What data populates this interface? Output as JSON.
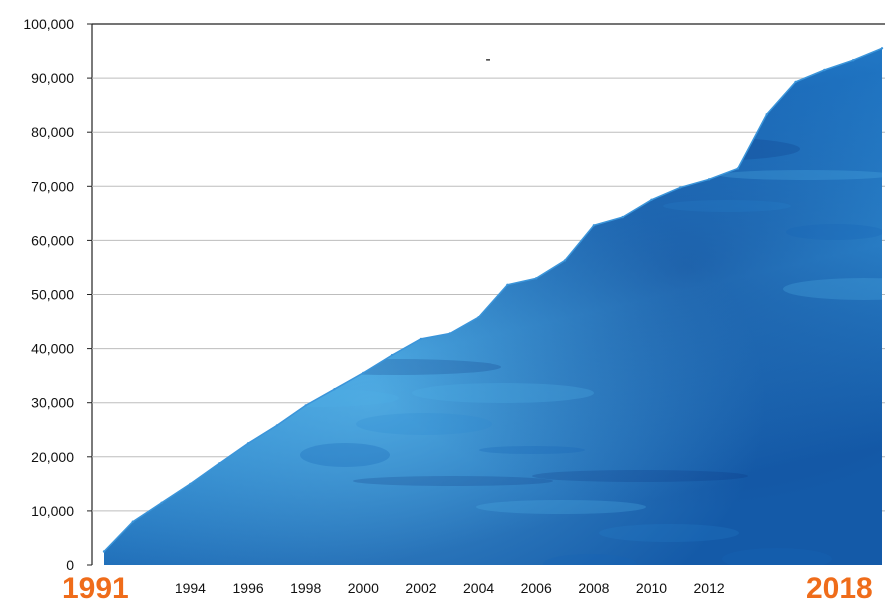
{
  "chart_data": {
    "type": "area",
    "title": "-",
    "x": [
      1991,
      1992,
      1993,
      1994,
      1995,
      1996,
      1997,
      1998,
      1999,
      2000,
      2001,
      2002,
      2003,
      2004,
      2005,
      2006,
      2007,
      2008,
      2009,
      2010,
      2011,
      2012,
      2013,
      2014,
      2015,
      2016,
      2017,
      2018
    ],
    "series": [
      {
        "values": [
          2500,
          8000,
          11500,
          15000,
          18800,
          22500,
          25800,
          29500,
          32500,
          35500,
          38800,
          41800,
          42800,
          45800,
          51800,
          53000,
          56300,
          62800,
          64300,
          67500,
          69800,
          71300,
          73300,
          83300,
          89300,
          91500,
          93300,
          95500
        ]
      }
    ],
    "ylim": [
      0,
      100000
    ],
    "yticks": [
      "0",
      "10,000",
      "20,000",
      "30,000",
      "40,000",
      "50,000",
      "60,000",
      "70,000",
      "80,000",
      "90,000",
      "100,000"
    ],
    "xticks": [
      "1994",
      "1996",
      "1998",
      "2000",
      "2002",
      "2004",
      "2006",
      "2008",
      "2010",
      "2012"
    ],
    "x_start_label": "1991",
    "x_end_label": "2018",
    "grid": true,
    "fill_colors": [
      "#0b2f7a",
      "#1565b8",
      "#2a86d0",
      "#4fb0e6"
    ],
    "highlight_color": "#ef6c1a"
  }
}
